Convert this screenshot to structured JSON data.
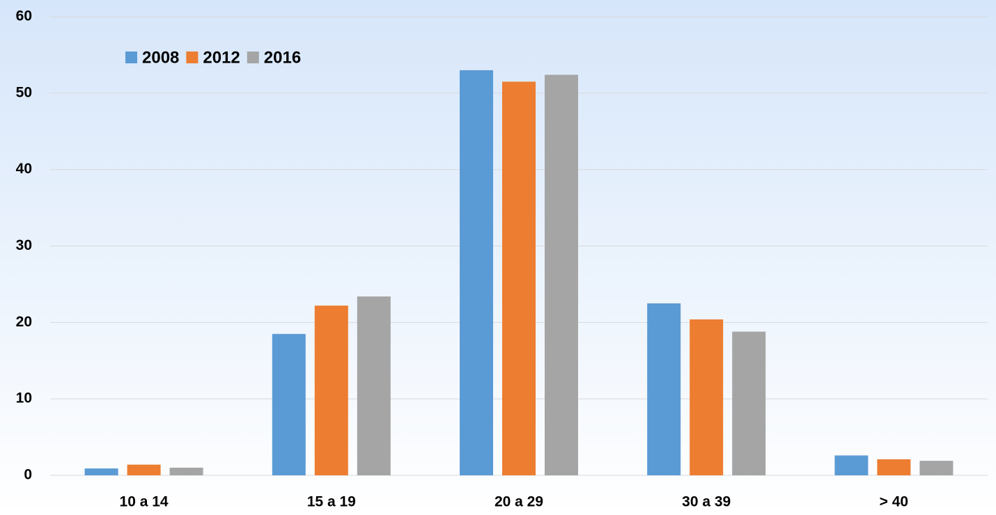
{
  "chart_data": {
    "type": "bar",
    "categories": [
      "10 a 14",
      "15 a 19",
      "20 a 29",
      "30 a 39",
      "> 40"
    ],
    "series": [
      {
        "name": "2008",
        "color": "#5b9bd5",
        "values": [
          0.9,
          18.5,
          53.0,
          22.5,
          2.6
        ]
      },
      {
        "name": "2012",
        "color": "#ed7d31",
        "values": [
          1.4,
          22.2,
          51.5,
          20.4,
          2.1
        ]
      },
      {
        "name": "2016",
        "color": "#a5a5a5",
        "values": [
          1.0,
          23.4,
          52.4,
          18.8,
          1.9
        ]
      }
    ],
    "ylim": [
      0,
      60
    ],
    "yticks": [
      0,
      10,
      20,
      30,
      40,
      50,
      60
    ],
    "grid": true,
    "legend": "top-left"
  }
}
